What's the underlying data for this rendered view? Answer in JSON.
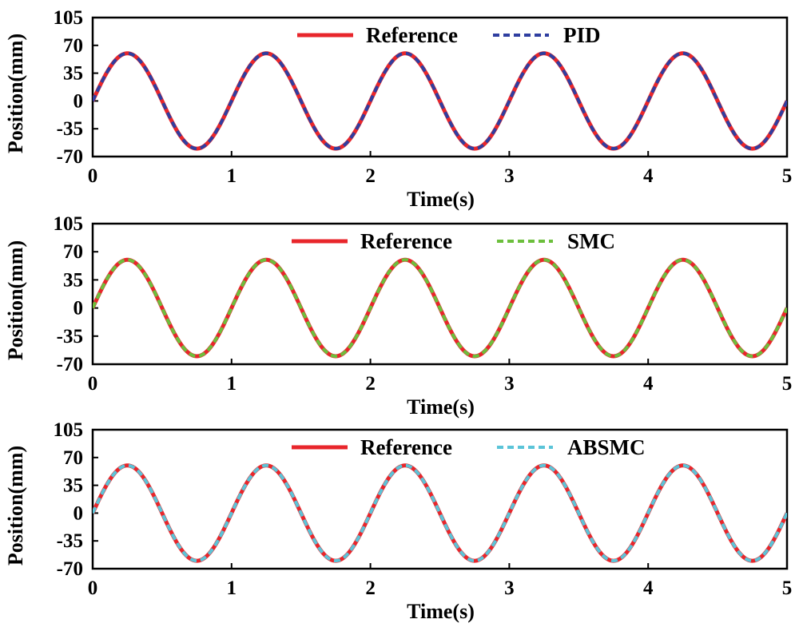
{
  "chart_data": [
    {
      "type": "line",
      "title": "",
      "xlabel": "Time(s)",
      "ylabel": "Position(mm)",
      "xlim": [
        0,
        5
      ],
      "ylim": [
        -70,
        105
      ],
      "xticks": [
        "0",
        "1",
        "2",
        "3",
        "4",
        "5"
      ],
      "yticks": [
        "-70",
        "-35",
        "0",
        "35",
        "70",
        "105"
      ],
      "legend_position": "top-center",
      "series": [
        {
          "name": "Reference",
          "color": "#e8262b",
          "style": "solid",
          "function": "60*sin(2*pi*t)",
          "amplitude": 60,
          "frequency_hz": 1
        },
        {
          "name": "PID",
          "color": "#2f3ea0",
          "style": "dashed",
          "function": "60*sin(2*pi*t)",
          "amplitude": 60,
          "frequency_hz": 1
        }
      ]
    },
    {
      "type": "line",
      "title": "",
      "xlabel": "Time(s)",
      "ylabel": "Position(mm)",
      "xlim": [
        0,
        5
      ],
      "ylim": [
        -70,
        105
      ],
      "xticks": [
        "0",
        "1",
        "2",
        "3",
        "4",
        "5"
      ],
      "yticks": [
        "-70",
        "-35",
        "0",
        "35",
        "70",
        "105"
      ],
      "legend_position": "top-center",
      "series": [
        {
          "name": "Reference",
          "color": "#e8262b",
          "style": "solid",
          "function": "60*sin(2*pi*t)",
          "amplitude": 60,
          "frequency_hz": 1
        },
        {
          "name": "SMC",
          "color": "#6cbf3c",
          "style": "dashed",
          "function": "60*sin(2*pi*t)",
          "amplitude": 60,
          "frequency_hz": 1
        }
      ]
    },
    {
      "type": "line",
      "title": "",
      "xlabel": "Time(s)",
      "ylabel": "Position(mm)",
      "xlim": [
        0,
        5
      ],
      "ylim": [
        -70,
        105
      ],
      "xticks": [
        "0",
        "1",
        "2",
        "3",
        "4",
        "5"
      ],
      "yticks": [
        "-70",
        "-35",
        "0",
        "35",
        "70",
        "105"
      ],
      "legend_position": "top-center",
      "series": [
        {
          "name": "Reference",
          "color": "#e8262b",
          "style": "solid",
          "function": "60*sin(2*pi*t)",
          "amplitude": 60,
          "frequency_hz": 1
        },
        {
          "name": "ABSMC",
          "color": "#5bc4d8",
          "style": "dashed",
          "function": "60*sin(2*pi*t)",
          "amplitude": 60,
          "frequency_hz": 1
        }
      ]
    }
  ]
}
